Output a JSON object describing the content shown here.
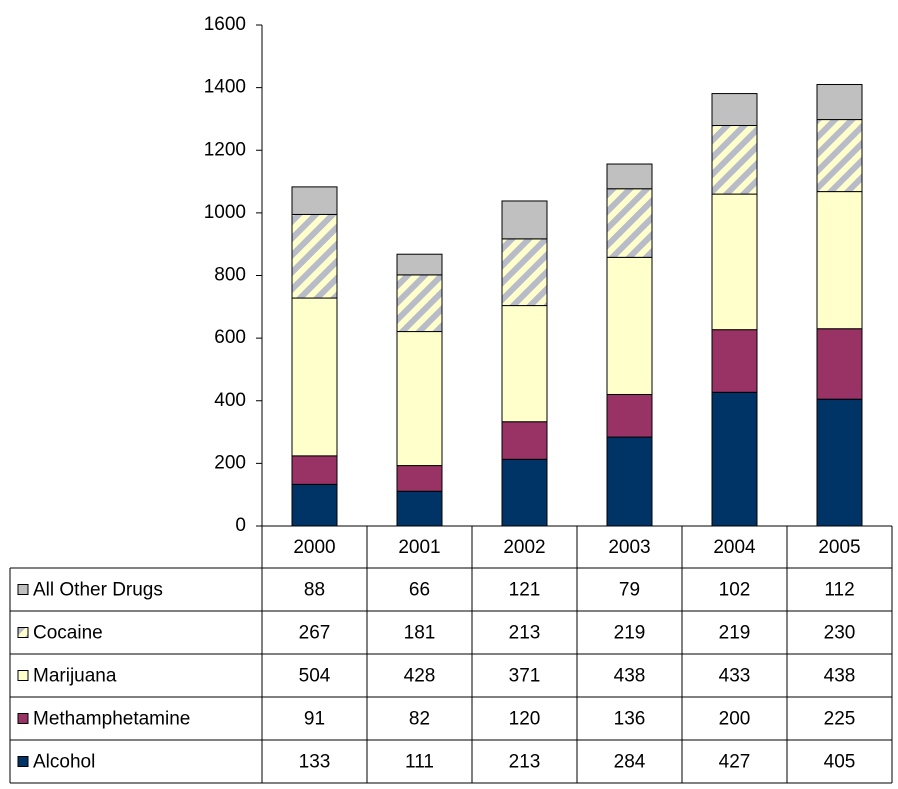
{
  "chart_data": {
    "type": "stacked_bar_table",
    "categories": [
      "2000",
      "2001",
      "2002",
      "2003",
      "2004",
      "2005"
    ],
    "ylim": [
      0,
      1600
    ],
    "yticks": [
      0,
      200,
      400,
      600,
      800,
      1000,
      1200,
      1400,
      1600
    ],
    "series": [
      {
        "name": "Alcohol",
        "color": "#003366",
        "values": [
          133,
          111,
          213,
          284,
          427,
          405
        ]
      },
      {
        "name": "Methamphetamine",
        "color": "#993366",
        "values": [
          91,
          82,
          120,
          136,
          200,
          225
        ]
      },
      {
        "name": "Marijuana",
        "color": "#ffffcc",
        "values": [
          504,
          428,
          371,
          438,
          433,
          438
        ]
      },
      {
        "name": "Cocaine",
        "color": "#b8bcc8",
        "pattern": "diagonal",
        "values": [
          267,
          181,
          213,
          219,
          219,
          230
        ]
      },
      {
        "name": "All Other Drugs",
        "color": "#c0c0c0",
        "values": [
          88,
          66,
          121,
          79,
          102,
          112
        ]
      }
    ]
  }
}
